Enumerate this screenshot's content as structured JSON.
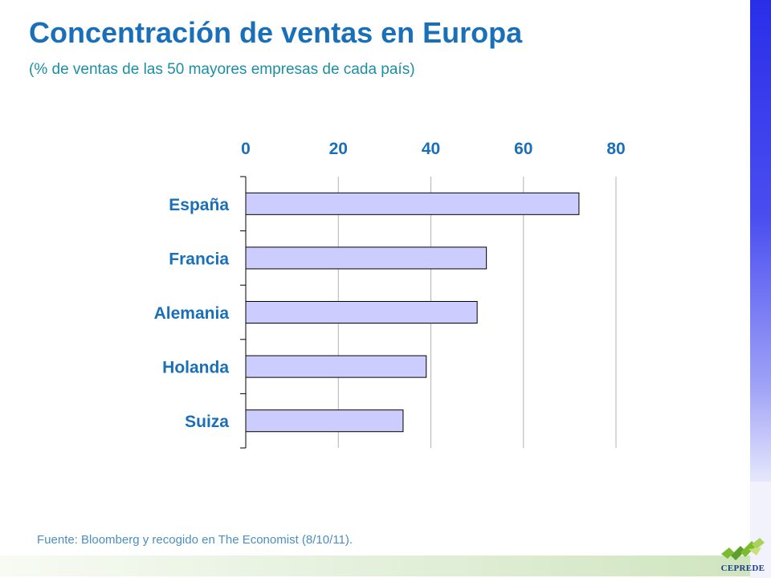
{
  "slide": {
    "title": "Concentración de ventas en Europa",
    "subtitle": "(% de ventas de las 50 mayores empresas de cada país)",
    "source": "Fuente: Bloomberg y recogido en The Economist (8/10/11).",
    "logo_text": "CEPREDE"
  },
  "chart_data": {
    "type": "bar",
    "orientation": "horizontal",
    "title": "",
    "xlabel": "",
    "ylabel": "",
    "categories": [
      "España",
      "Francia",
      "Alemania",
      "Holanda",
      "Suiza"
    ],
    "values": [
      72,
      52,
      50,
      39,
      34
    ],
    "xlim": [
      0,
      80
    ],
    "x_ticks": [
      0,
      20,
      40,
      60,
      80
    ],
    "x_tick_labels": [
      "0",
      "20",
      "40",
      "60",
      "80"
    ],
    "x_axis_position": "top",
    "grid": true,
    "legend": "none",
    "bar_color": "#CCCCFF",
    "bar_border_color": "#000000"
  },
  "colors": {
    "title": "#1A70B8",
    "subtitle": "#1A8FA5",
    "source": "#4A8FC0",
    "side_bar": "#2A2EE8",
    "logo_green": "#7DBB2E"
  }
}
